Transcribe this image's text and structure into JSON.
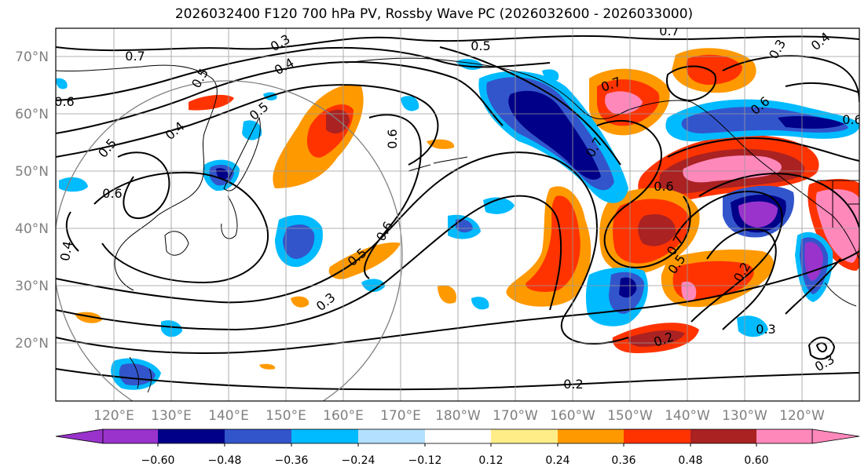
{
  "title": "2026032400 F120 700 hPa PV, Rossby Wave PC (2026032600 - 2026033000)",
  "map": {
    "lat_labels": [
      "70°N",
      "60°N",
      "50°N",
      "40°N",
      "30°N",
      "20°N"
    ],
    "lon_labels": [
      "120°E",
      "130°E",
      "140°E",
      "150°E",
      "160°E",
      "170°E",
      "180°W",
      "170°W",
      "160°W",
      "150°W",
      "140°W",
      "130°W",
      "120°W"
    ],
    "contour_labels": [
      "0.7",
      "0.5",
      "0.4",
      "0.3",
      "0.5",
      "0.6",
      "0.4",
      "0.5",
      "0.6",
      "0.4",
      "0.5",
      "0.6",
      "0.6",
      "0.3",
      "0.5",
      "0.7",
      "0.7",
      "0.6",
      "0.7",
      "0.5",
      "0.6",
      "0.3",
      "0.2",
      "0.2",
      "0.3",
      "0.3",
      "0.4",
      "0.2",
      "0.6",
      "0.7"
    ]
  },
  "colorbar": {
    "ticks": [
      "−0.60",
      "−0.48",
      "−0.36",
      "−0.24",
      "−0.12",
      "0.12",
      "0.24",
      "0.36",
      "0.48",
      "0.60"
    ],
    "colors": [
      "#9933cc",
      "#000088",
      "#3355cc",
      "#00bbff",
      "#b3e0ff",
      "#ffffff",
      "#ffee88",
      "#ff9900",
      "#ff3300",
      "#aa2222",
      "#ff88bb"
    ]
  },
  "palette": {
    "purple": "#9933cc",
    "navy": "#000088",
    "blue": "#3355cc",
    "sky": "#00bbff",
    "light_blue": "#b3e0ff",
    "yellow": "#ffee88",
    "orange": "#ff9900",
    "red_orange": "#ff3300",
    "dark_red": "#aa2222",
    "pink": "#ff88bb"
  }
}
